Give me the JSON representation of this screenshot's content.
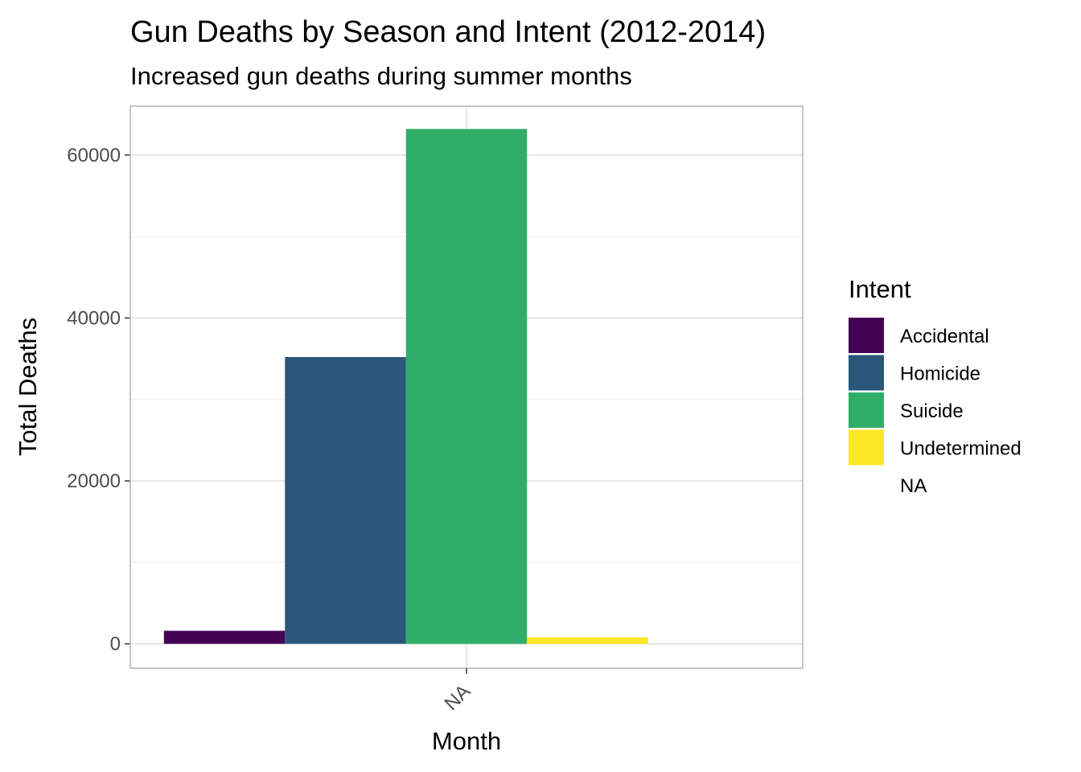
{
  "chart_data": {
    "type": "bar",
    "title": "Gun Deaths by Season and Intent (2012-2014)",
    "subtitle": "Increased gun deaths during summer months",
    "xlabel": "Month",
    "ylabel": "Total Deaths",
    "categories": [
      "NA"
    ],
    "ylim": [
      -3000,
      66000
    ],
    "yticks": [
      0,
      20000,
      40000,
      60000
    ],
    "grid": true,
    "legend": {
      "title": "Intent",
      "placement": "right"
    },
    "series": [
      {
        "name": "Accidental",
        "values": [
          1600
        ],
        "color": "#440154"
      },
      {
        "name": "Homicide",
        "values": [
          35200
        ],
        "color": "#2a5779"
      },
      {
        "name": "Suicide",
        "values": [
          63200
        ],
        "color": "#31ad6a"
      },
      {
        "name": "Undetermined",
        "values": [
          800
        ],
        "color": "#fde725"
      },
      {
        "name": "NA",
        "values": [
          0
        ],
        "color": "#ffffff"
      }
    ]
  }
}
